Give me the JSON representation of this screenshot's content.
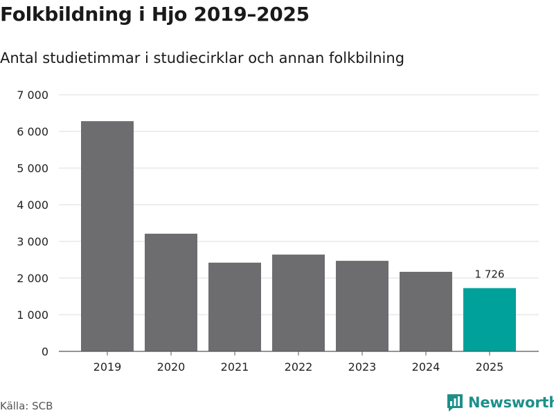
{
  "header": {
    "title": "Folkbildning i Hjo 2019–2025",
    "subtitle": "Antal studietimmar i studiecirklar och annan folkbilning"
  },
  "footer": {
    "source": "Källa: SCB",
    "brand": "Newsworthy"
  },
  "colors": {
    "bar": "#6d6d70",
    "highlight": "#00a19a",
    "grid": "#dddddd",
    "axis": "#555555",
    "brand": "#1e8f8a"
  },
  "chart_data": {
    "type": "bar",
    "categories": [
      "2019",
      "2020",
      "2021",
      "2022",
      "2023",
      "2024",
      "2025"
    ],
    "values": [
      6280,
      3210,
      2420,
      2640,
      2470,
      2170,
      1726
    ],
    "highlight_index": 6,
    "data_labels": [
      {
        "index": 6,
        "text": "1 726"
      }
    ],
    "ylim": [
      0,
      7000
    ],
    "yticks": [
      0,
      1000,
      2000,
      3000,
      4000,
      5000,
      6000,
      7000
    ],
    "ytick_labels": [
      "0",
      "1 000",
      "2 000",
      "3 000",
      "4 000",
      "5 000",
      "6 000",
      "7 000"
    ],
    "xlabel": "",
    "ylabel": "",
    "grid": true
  }
}
